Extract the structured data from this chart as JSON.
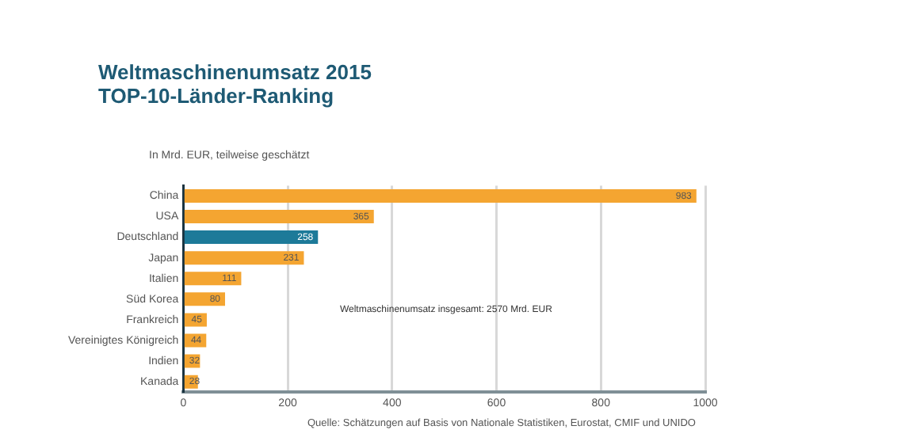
{
  "chart_data": {
    "type": "bar",
    "orientation": "horizontal",
    "title": "Weltmaschinenumsatz 2015\nTOP-10-Länder-Ranking",
    "subtitle": "In Mrd. EUR, teilweise geschätzt",
    "categories": [
      "China",
      "USA",
      "Deutschland",
      "Japan",
      "Italien",
      "Süd Korea",
      "Frankreich",
      "Vereinigtes Königreich",
      "Indien",
      "Kanada"
    ],
    "values": [
      983,
      365,
      258,
      231,
      111,
      80,
      45,
      44,
      32,
      28
    ],
    "data_labels": true,
    "colors": [
      "#f4a531",
      "#f4a531",
      "#1d7a99",
      "#f4a531",
      "#f4a531",
      "#f4a531",
      "#f4a531",
      "#f4a531",
      "#f4a531",
      "#f4a531"
    ],
    "xlim": [
      0,
      1000
    ],
    "xticks": [
      0,
      200,
      400,
      600,
      800,
      1000
    ],
    "grid": "x",
    "annotations": [
      "Weltmaschinenumsatz insgesamt: 2570 Mrd. EUR",
      "Quelle: Schätzungen auf Basis von Nationale Statistiken, Eurostat, CMIF und UNIDO"
    ]
  }
}
